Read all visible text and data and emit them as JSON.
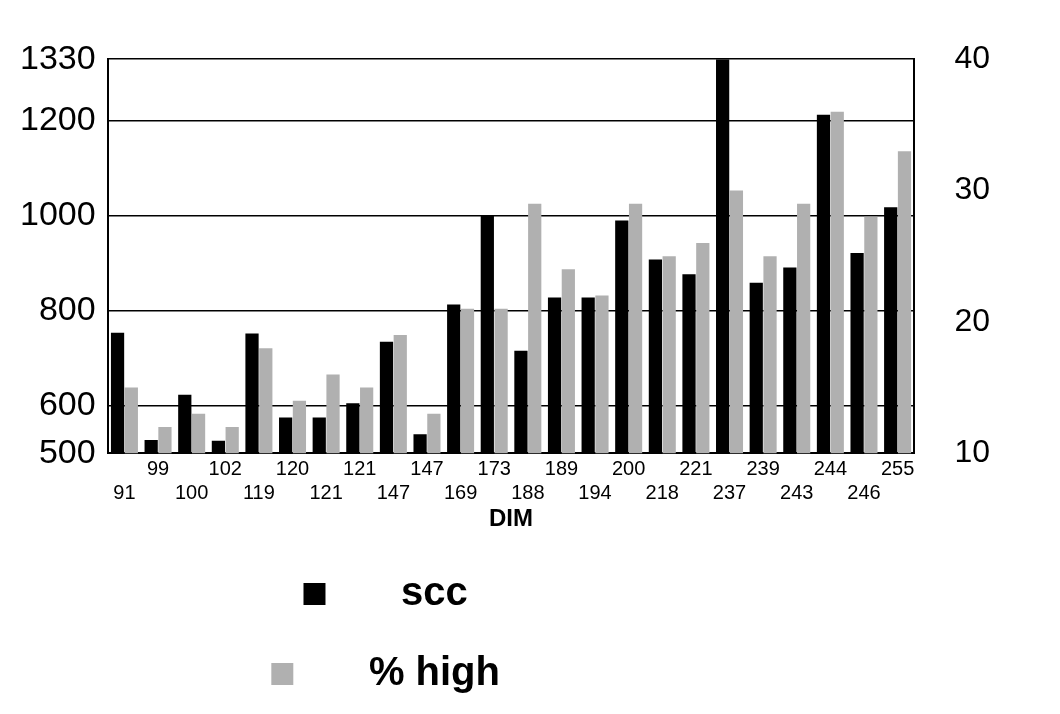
{
  "chart_data": {
    "type": "bar",
    "xlabel": "DIM",
    "categories": [
      "91",
      "99",
      "100",
      "102",
      "119",
      "120",
      "121",
      "121",
      "147",
      "147",
      "169",
      "173",
      "188",
      "189",
      "194",
      "200",
      "218",
      "221",
      "237",
      "239",
      "243",
      "244",
      "246",
      "255"
    ],
    "series": [
      {
        "name": "scc",
        "color": "#000000",
        "values": [
          754,
          528,
          623,
          526,
          752,
          575,
          575,
          605,
          735,
          540,
          813,
          1000,
          716,
          828,
          828,
          990,
          908,
          877,
          1330,
          859,
          891,
          1213,
          922,
          1018
        ]
      },
      {
        "name": "% high",
        "color": "#b0b0b0",
        "axis": "y2",
        "values": [
          15,
          12,
          13,
          12,
          18,
          14,
          16,
          15,
          19,
          13,
          21,
          21,
          29,
          24,
          22,
          29,
          25,
          26,
          30,
          25,
          29,
          36,
          28,
          33
        ]
      }
    ],
    "ylim": [
      500,
      1330
    ],
    "yticks": [
      500,
      600,
      800,
      1000,
      1200,
      1330
    ],
    "y2lim": [
      10,
      40
    ],
    "y2ticks": [
      10,
      20,
      30,
      40
    ],
    "grid": "y",
    "legend": "bottom"
  }
}
